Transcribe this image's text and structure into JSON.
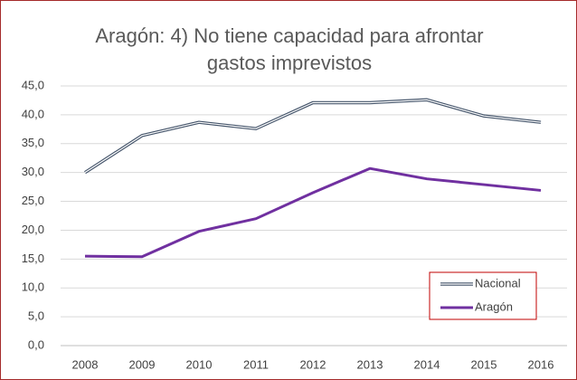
{
  "chart_data": {
    "type": "line",
    "title": "Aragón: 4) No tiene capacidad para afrontar gastos imprevistos",
    "categories": [
      "2008",
      "2009",
      "2010",
      "2011",
      "2012",
      "2013",
      "2014",
      "2015",
      "2016"
    ],
    "series": [
      {
        "name": "Nacional",
        "color": "#44546a",
        "values": [
          30.0,
          36.4,
          38.7,
          37.6,
          42.1,
          42.1,
          42.6,
          39.8,
          38.7
        ]
      },
      {
        "name": "Aragón",
        "color": "#7030a0",
        "values": [
          15.5,
          15.4,
          19.8,
          22.0,
          26.5,
          30.7,
          28.9,
          27.9,
          26.9
        ]
      }
    ],
    "ylim": [
      0,
      45
    ],
    "yticks": [
      {
        "value": 0,
        "label": "0,0"
      },
      {
        "value": 5,
        "label": "5,0"
      },
      {
        "value": 10,
        "label": "10,0"
      },
      {
        "value": 15,
        "label": "15,0"
      },
      {
        "value": 20,
        "label": "20,0"
      },
      {
        "value": 25,
        "label": "25,0"
      },
      {
        "value": 30,
        "label": "30,0"
      },
      {
        "value": 35,
        "label": "35,0"
      },
      {
        "value": 40,
        "label": "40,0"
      },
      {
        "value": 45,
        "label": "45,0"
      }
    ],
    "grid": true,
    "legend": "bottom-right"
  }
}
